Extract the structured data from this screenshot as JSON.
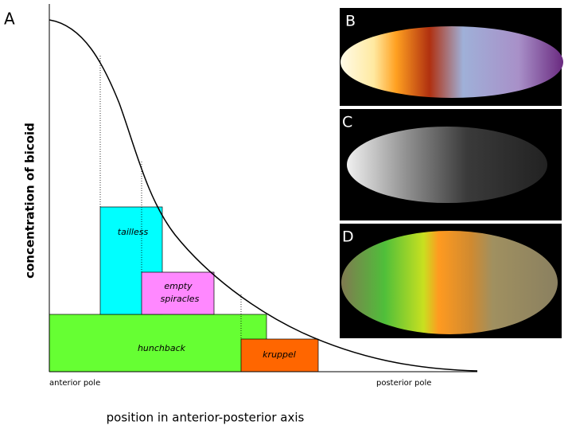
{
  "panel_labels": {
    "a": "A",
    "b": "B",
    "c": "C",
    "d": "D"
  },
  "axes": {
    "y_label": "concentration of bicoid",
    "x_label": "position in anterior-posterior axis",
    "x_start": "anterior pole",
    "x_end": "posterior pole"
  },
  "boxes": {
    "tailless": "tailless",
    "empty_spiracles": [
      "empty",
      "spiracles"
    ],
    "hunchback": "hunchback",
    "kruppel": "kruppel"
  }
}
